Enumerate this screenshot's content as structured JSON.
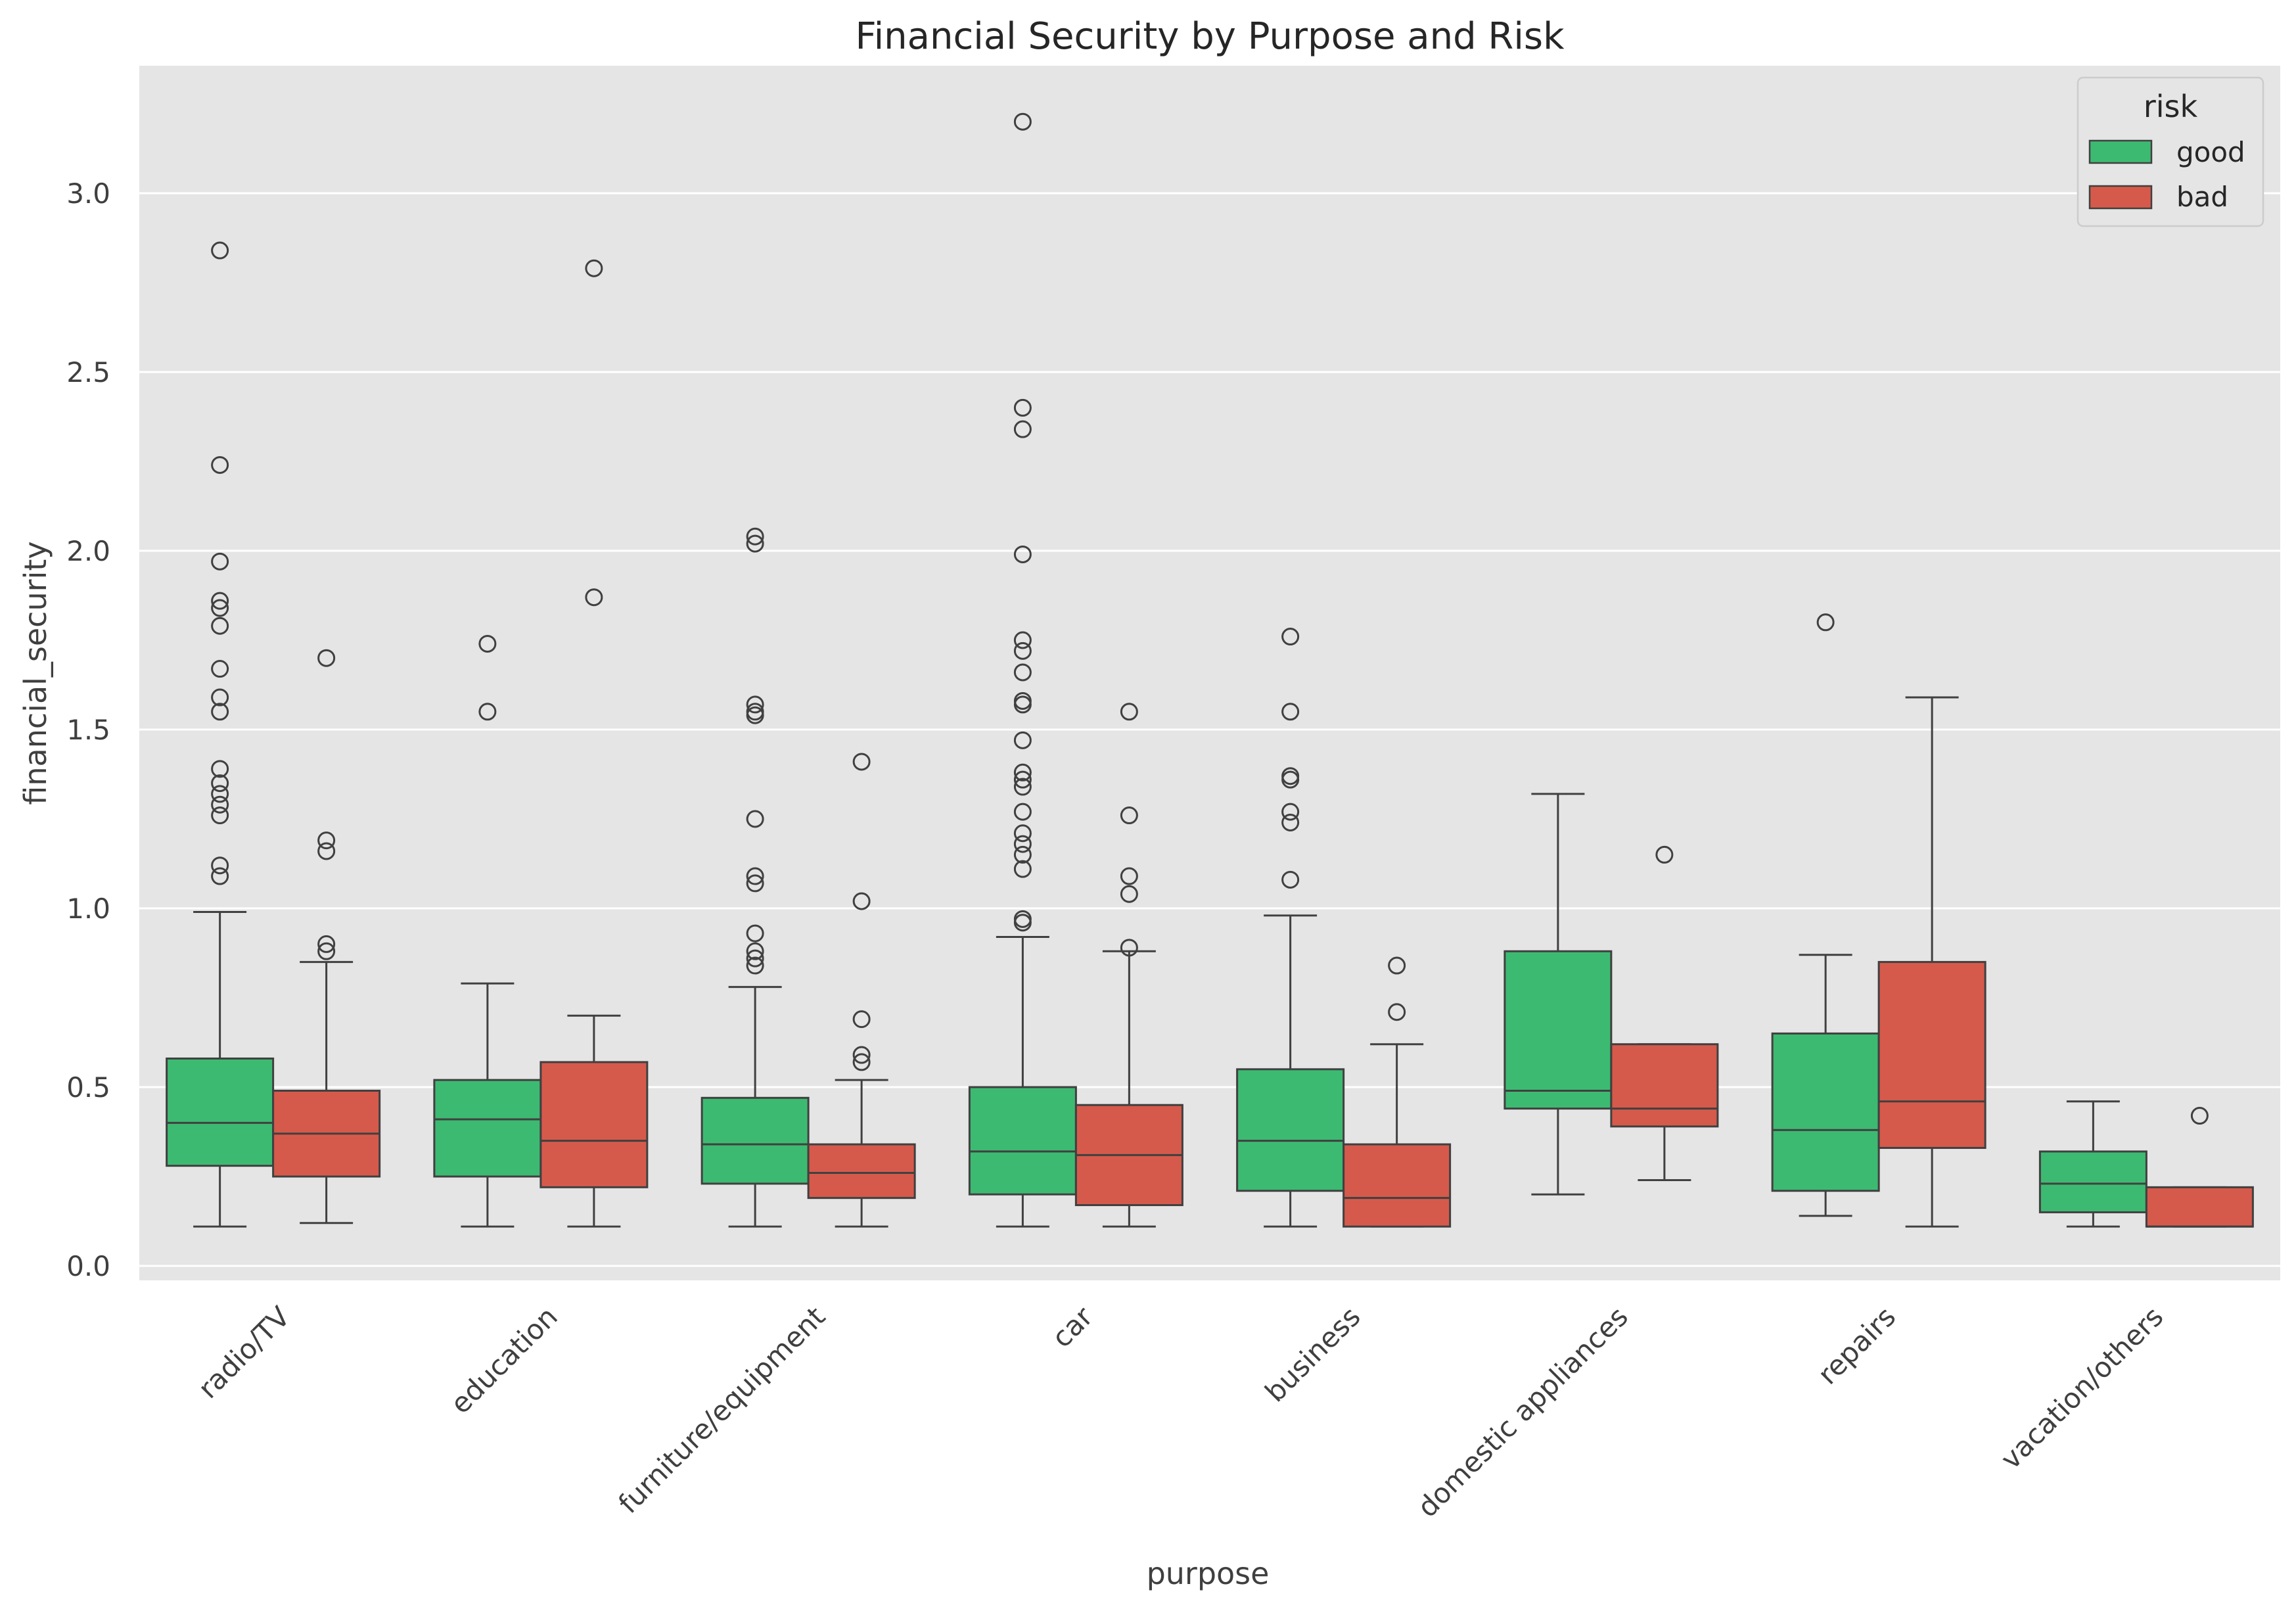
{
  "chart_data": {
    "type": "box",
    "title": "Financial Security by Purpose and Risk",
    "xlabel": "purpose",
    "ylabel": "financial_security",
    "ylim": [
      -0.04,
      3.5
    ],
    "yticks": [
      0.0,
      0.5,
      1.0,
      1.5,
      2.0,
      2.5,
      3.0
    ],
    "ytick_labels": [
      "0.0",
      "0.5",
      "1.0",
      "1.5",
      "2.0",
      "2.5",
      "3.0"
    ],
    "grid": true,
    "legend": {
      "title": "risk",
      "position": "top-right"
    },
    "categories": [
      "radio/TV",
      "education",
      "furniture/equipment",
      "car",
      "business",
      "domestic appliances",
      "repairs",
      "vacation/others"
    ],
    "series": [
      {
        "name": "good",
        "color": "#3dba72",
        "boxes": [
          {
            "whislo": 0.11,
            "q1": 0.28,
            "med": 0.4,
            "q3": 0.58,
            "whishi": 0.99,
            "fliers": [
              1.09,
              1.12,
              1.26,
              1.29,
              1.32,
              1.35,
              1.39,
              1.55,
              1.59,
              1.67,
              1.79,
              1.84,
              1.86,
              1.97,
              2.24,
              2.84
            ]
          },
          {
            "whislo": 0.11,
            "q1": 0.25,
            "med": 0.41,
            "q3": 0.52,
            "whishi": 0.79,
            "fliers": [
              1.55,
              1.74
            ]
          },
          {
            "whislo": 0.11,
            "q1": 0.23,
            "med": 0.34,
            "q3": 0.47,
            "whishi": 0.78,
            "fliers": [
              0.84,
              0.86,
              0.88,
              0.93,
              1.07,
              1.09,
              1.25,
              1.54,
              1.55,
              1.57,
              2.02,
              2.04
            ]
          },
          {
            "whislo": 0.11,
            "q1": 0.2,
            "med": 0.32,
            "q3": 0.5,
            "whishi": 0.92,
            "fliers": [
              0.96,
              0.97,
              1.11,
              1.15,
              1.18,
              1.21,
              1.27,
              1.34,
              1.36,
              1.38,
              1.47,
              1.57,
              1.58,
              1.66,
              1.72,
              1.75,
              1.99,
              2.34,
              2.4,
              3.2
            ]
          },
          {
            "whislo": 0.11,
            "q1": 0.21,
            "med": 0.35,
            "q3": 0.55,
            "whishi": 0.98,
            "fliers": [
              1.08,
              1.24,
              1.27,
              1.36,
              1.37,
              1.55,
              1.76
            ]
          },
          {
            "whislo": 0.2,
            "q1": 0.44,
            "med": 0.49,
            "q3": 0.88,
            "whishi": 1.32,
            "fliers": []
          },
          {
            "whislo": 0.14,
            "q1": 0.21,
            "med": 0.38,
            "q3": 0.65,
            "whishi": 0.87,
            "fliers": [
              1.8
            ]
          },
          {
            "whislo": 0.11,
            "q1": 0.15,
            "med": 0.23,
            "q3": 0.32,
            "whishi": 0.46,
            "fliers": []
          }
        ]
      },
      {
        "name": "bad",
        "color": "#d65a4b",
        "boxes": [
          {
            "whislo": 0.12,
            "q1": 0.25,
            "med": 0.37,
            "q3": 0.49,
            "whishi": 0.85,
            "fliers": [
              0.88,
              0.9,
              1.16,
              1.19,
              1.7
            ]
          },
          {
            "whislo": 0.11,
            "q1": 0.22,
            "med": 0.35,
            "q3": 0.57,
            "whishi": 0.7,
            "fliers": [
              1.87,
              2.79
            ]
          },
          {
            "whislo": 0.11,
            "q1": 0.19,
            "med": 0.26,
            "q3": 0.34,
            "whishi": 0.52,
            "fliers": [
              0.57,
              0.59,
              0.69,
              1.02,
              1.41
            ]
          },
          {
            "whislo": 0.11,
            "q1": 0.17,
            "med": 0.31,
            "q3": 0.45,
            "whishi": 0.88,
            "fliers": [
              0.89,
              1.04,
              1.09,
              1.26,
              1.55
            ]
          },
          {
            "whislo": 0.11,
            "q1": 0.11,
            "med": 0.19,
            "q3": 0.34,
            "whishi": 0.62,
            "fliers": [
              0.71,
              0.84
            ]
          },
          {
            "whislo": 0.24,
            "q1": 0.39,
            "med": 0.44,
            "q3": 0.62,
            "whishi": 0.62,
            "fliers": [
              1.15
            ]
          },
          {
            "whislo": 0.11,
            "q1": 0.33,
            "med": 0.46,
            "q3": 0.85,
            "whishi": 1.59,
            "fliers": []
          },
          {
            "whislo": 0.11,
            "q1": 0.11,
            "med": 0.11,
            "q3": 0.22,
            "whishi": 0.22,
            "fliers": [
              0.42
            ]
          }
        ]
      }
    ]
  }
}
